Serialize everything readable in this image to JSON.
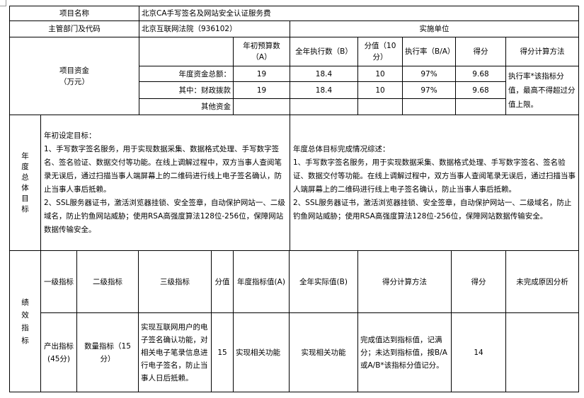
{
  "project": {
    "name_label": "项目名称",
    "name_value": "北京CA手写签名及网站安全认证服务费",
    "dept_label": "主管部门及代码",
    "dept_value": "北京互联网法院（936102）",
    "impl_label": "实施单位"
  },
  "funds": {
    "label_line1": "项目资金",
    "label_line2": "（万元）",
    "headers": [
      "年初预算数（A）",
      "全年执行数（B）",
      "分值（10分）",
      "执行率（B/A）",
      "得分",
      "得分计算方法"
    ],
    "rows": [
      {
        "label": "年度资金总额：",
        "budget": "19",
        "executed": "18.4",
        "weight": "10",
        "rate": "97%",
        "score": "9.68"
      },
      {
        "label": "其中：财政拨款",
        "budget": "19",
        "executed": "18.4",
        "weight": "10",
        "rate": "97%",
        "score": "9.68"
      },
      {
        "label": "其他资金",
        "budget": "",
        "executed": "",
        "weight": "",
        "rate": "",
        "score": ""
      }
    ],
    "method": "执行率*该指标分值，最高不得超过分值上限。"
  },
  "goals": {
    "section_label": "年度总体目标",
    "planned_title": "年初设定目标：",
    "planned_text": "1、手写数字签名服务，用于实现数据采集、数据格式处理、手写数字签名、签名验证、数据交付等功能。在线上调解过程中，双方当事人查阅笔录无误后，通过扫描当事人端屏幕上的二维码进行线上电子签名确认，防止当事人事后抵赖。",
    "planned_text2": "2、SSL服务器证书，激活浏览器挂锁、安全签章，自动保护网站一、二级域名，防止钓鱼网站威胁；使用RSA高强度算法128位-256位，保障网站数据传输安全。",
    "actual_title": "年度总体目标完成情况综述：",
    "actual_text": "1、手写数字签名服务，用于实现数据采集、数据格式处理、手写数字签名、签名验证、数据交付等功能。在线上调解过程中，双方当事人查阅笔录无误后，通过扫描当事人端屏幕上的二维码进行线上电子签名确认，防止当事人事后抵赖。",
    "actual_text2": "2、SSL服务器证书，激活浏览器挂锁、安全签章，自动保护网站一、二级域名，防止钓鱼网站威胁；使用RSA高强度算法128位-256位，保障网站数据传输安全。"
  },
  "indicators": {
    "section_label": "绩效指标",
    "headers": [
      "一级指标",
      "二级指标",
      "三级指标",
      "分值",
      "年度指标值(A)",
      "全年实际值(B)",
      "得分计算方法",
      "得分",
      "未完成原因分析"
    ],
    "rows": [
      {
        "level1": "产出指标(45分)",
        "level2": "数量指标（15分）",
        "level3": "实现互联网用户的电子签名确认功能，对相关电子笔录信息进行电子签名，防止当事人日后抵赖。",
        "weight": "15",
        "target": "实现相关功能",
        "actual": "实现相关功能",
        "method": "完成值达到指标值，记满分；未达到指标值，按B/A或A/B*该指标分值记分。",
        "score": "14",
        "reason": ""
      }
    ]
  }
}
